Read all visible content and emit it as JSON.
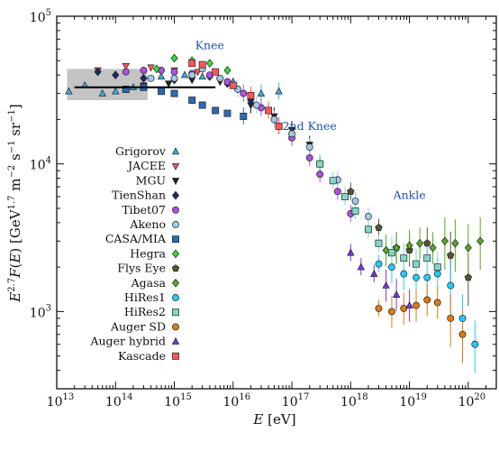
{
  "chart_data": {
    "type": "scatter",
    "title": "",
    "xlabel": "E [eV]",
    "ylabel": "E^2.7 F(E) [GeV^1.7 m^-2 s^-1 sr^-1]",
    "x_scale": "log",
    "y_scale": "log",
    "xlim": [
      10000000000000.0,
      3e+20
    ],
    "ylim": [
      300,
      100000
    ],
    "x_tick_labels": [
      "10^13",
      "10^14",
      "10^15",
      "10^16",
      "10^17",
      "10^18",
      "10^19",
      "10^20"
    ],
    "y_tick_labels": [
      "10^3",
      "10^4",
      "10^5"
    ],
    "legend_position": "left-center",
    "annotations": [
      {
        "text": "Knee",
        "x": 4000000000000000.0,
        "y": 60000
      },
      {
        "text": "2nd Knee",
        "x": 2e+17,
        "y": 17000
      },
      {
        "text": "Ankle",
        "x": 1e+19,
        "y": 5800
      }
    ],
    "reference_line": {
      "x": [
        20000000000000.0,
        5000000000000000.0
      ],
      "y": [
        33000,
        33000
      ]
    },
    "band": {
      "x": [
        15000000000000.0,
        350000000000000.0
      ],
      "y": [
        27000,
        44000
      ]
    },
    "series": [
      {
        "name": "Grigorov",
        "color": "#3ab0e0",
        "marker": "triangle-up",
        "points": [
          [
            16000000000000.0,
            31000
          ],
          [
            30000000000000.0,
            34000
          ],
          [
            60000000000000.0,
            30000
          ],
          [
            100000000000000.0,
            31000
          ],
          [
            200000000000000.0,
            33000
          ],
          [
            600000000000000.0,
            39000
          ],
          [
            1500000000000000.0,
            40000
          ],
          [
            3000000000000000.0,
            39000
          ],
          [
            1e+16,
            36000
          ],
          [
            3e+16,
            30000
          ],
          [
            6e+16,
            31000
          ]
        ]
      },
      {
        "name": "JACEE",
        "color": "#ff5555",
        "marker": "triangle-down",
        "points": [
          [
            50000000000000.0,
            43000
          ],
          [
            150000000000000.0,
            46000
          ],
          [
            400000000000000.0,
            45000
          ],
          [
            1000000000000000.0,
            43000
          ],
          [
            2500000000000000.0,
            42000
          ]
        ]
      },
      {
        "name": "MGU",
        "color": "#222222",
        "marker": "triangle-down",
        "points": [
          [
            300000000000000.0,
            34000
          ],
          [
            800000000000000.0,
            35000
          ],
          [
            2000000000000000.0,
            37000
          ],
          [
            6000000000000000.0,
            36000
          ],
          [
            2e+16,
            25000
          ],
          [
            5e+16,
            21000
          ],
          [
            1e+17,
            17000
          ],
          [
            2e+17,
            13500
          ]
        ]
      },
      {
        "name": "TienShan",
        "color": "#1a2a6a",
        "marker": "diamond",
        "points": [
          [
            50000000000000.0,
            42000
          ],
          [
            100000000000000.0,
            40000
          ],
          [
            300000000000000.0,
            38000
          ],
          [
            1000000000000000.0,
            37000
          ],
          [
            2000000000000000.0,
            40000
          ],
          [
            4000000000000000.0,
            39000
          ],
          [
            8000000000000000.0,
            35000
          ],
          [
            2e+16,
            27000
          ]
        ]
      },
      {
        "name": "Tibet07",
        "color": "#b050e0",
        "marker": "circle",
        "points": [
          [
            150000000000000.0,
            42000
          ],
          [
            300000000000000.0,
            43000
          ],
          [
            600000000000000.0,
            43000
          ],
          [
            1000000000000000.0,
            42000
          ],
          [
            2000000000000000.0,
            41000
          ],
          [
            4000000000000000.0,
            40000
          ],
          [
            8000000000000000.0,
            36000
          ],
          [
            1.5e+16,
            30000
          ],
          [
            3e+16,
            24000
          ],
          [
            6e+16,
            18000
          ],
          [
            1e+17,
            15000
          ],
          [
            2e+17,
            11000
          ],
          [
            3e+17,
            8500
          ],
          [
            6e+17,
            6500
          ],
          [
            1e+18,
            4600
          ]
        ]
      },
      {
        "name": "Akeno",
        "color": "#a0c8e8",
        "marker": "circle",
        "points": [
          [
            400000000000000.0,
            38000
          ],
          [
            1000000000000000.0,
            38000
          ],
          [
            2000000000000000.0,
            40000
          ],
          [
            3000000000000000.0,
            44000
          ],
          [
            6000000000000000.0,
            38000
          ],
          [
            1.2e+16,
            32000
          ],
          [
            2.5e+16,
            25000
          ],
          [
            5e+16,
            20000
          ],
          [
            1e+17,
            16000
          ],
          [
            2e+17,
            13000
          ],
          [
            3e+17,
            10000
          ],
          [
            6e+17,
            7800
          ],
          [
            1.2e+18,
            5600
          ],
          [
            2e+18,
            4400
          ]
        ]
      },
      {
        "name": "CASA/MIA",
        "color": "#2c6ab8",
        "marker": "square",
        "points": [
          [
            150000000000000.0,
            32000
          ],
          [
            300000000000000.0,
            33000
          ],
          [
            600000000000000.0,
            31000
          ],
          [
            1000000000000000.0,
            30000
          ],
          [
            2000000000000000.0,
            27000
          ],
          [
            3000000000000000.0,
            25000
          ],
          [
            5000000000000000.0,
            23000
          ],
          [
            8000000000000000.0,
            22000
          ],
          [
            1.5e+16,
            21000
          ]
        ]
      },
      {
        "name": "Hegra",
        "color": "#33dd33",
        "marker": "diamond",
        "points": [
          [
            500000000000000.0,
            44000
          ],
          [
            1000000000000000.0,
            52000
          ],
          [
            2000000000000000.0,
            50000
          ],
          [
            4000000000000000.0,
            48000
          ],
          [
            8000000000000000.0,
            43000
          ]
        ]
      },
      {
        "name": "Flys Eye",
        "color": "#555533",
        "marker": "pentagon",
        "points": [
          [
            3e+17,
            10000
          ],
          [
            1e+18,
            6500
          ],
          [
            3e+18,
            3700
          ],
          [
            6e+18,
            2700
          ],
          [
            1e+19,
            2600
          ],
          [
            2e+19,
            2900
          ],
          [
            5e+19,
            2400
          ],
          [
            1e+20,
            1700
          ]
        ]
      },
      {
        "name": "Agasa",
        "color": "#55aa22",
        "marker": "diamond",
        "points": [
          [
            4e+18,
            2600
          ],
          [
            6e+18,
            2700
          ],
          [
            1e+19,
            2800
          ],
          [
            1.5e+19,
            2900
          ],
          [
            2.5e+19,
            2700
          ],
          [
            4e+19,
            3000
          ],
          [
            6e+19,
            2900
          ],
          [
            1e+20,
            2700
          ],
          [
            1.6e+20,
            3000
          ]
        ]
      },
      {
        "name": "HiRes1",
        "color": "#22ccff",
        "marker": "circle",
        "points": [
          [
            3e+18,
            2100
          ],
          [
            5e+18,
            2000
          ],
          [
            8e+18,
            1800
          ],
          [
            1.3e+19,
            1700
          ],
          [
            2e+19,
            1700
          ],
          [
            3e+19,
            1800
          ],
          [
            5e+19,
            1500
          ],
          [
            8e+19,
            900
          ],
          [
            1.3e+20,
            600
          ]
        ]
      },
      {
        "name": "HiRes2",
        "color": "#7fd8c8",
        "marker": "square",
        "points": [
          [
            3e+17,
            10000
          ],
          [
            5e+17,
            7700
          ],
          [
            8e+17,
            6000
          ],
          [
            1.2e+18,
            4800
          ],
          [
            2e+18,
            3600
          ],
          [
            3e+18,
            2900
          ],
          [
            5e+18,
            2500
          ],
          [
            8e+18,
            2300
          ],
          [
            1.3e+19,
            2100
          ],
          [
            2e+19,
            2300
          ],
          [
            3e+19,
            2000
          ]
        ]
      },
      {
        "name": "Auger SD",
        "color": "#e07a10",
        "marker": "circle",
        "points": [
          [
            3e+18,
            1050
          ],
          [
            5e+18,
            1000
          ],
          [
            8e+18,
            1050
          ],
          [
            1.3e+19,
            1100
          ],
          [
            2e+19,
            1200
          ],
          [
            3e+19,
            1150
          ],
          [
            5e+19,
            900
          ],
          [
            8e+19,
            700
          ]
        ]
      },
      {
        "name": "Auger hybrid",
        "color": "#7733ee",
        "marker": "triangle-up",
        "points": [
          [
            1e+18,
            2500
          ],
          [
            1.5e+18,
            2000
          ],
          [
            2.5e+18,
            1800
          ],
          [
            4e+18,
            1500
          ],
          [
            6e+18,
            1300
          ],
          [
            1e+19,
            1100
          ]
        ]
      },
      {
        "name": "Kascade",
        "color": "#ff5555",
        "marker": "square",
        "points": [
          [
            2000000000000000.0,
            48000
          ],
          [
            3000000000000000.0,
            47000
          ],
          [
            5000000000000000.0,
            42000
          ],
          [
            1e+16,
            34000
          ],
          [
            2e+16,
            29000
          ],
          [
            4e+16,
            23000
          ],
          [
            6e+16,
            18000
          ]
        ]
      }
    ]
  }
}
